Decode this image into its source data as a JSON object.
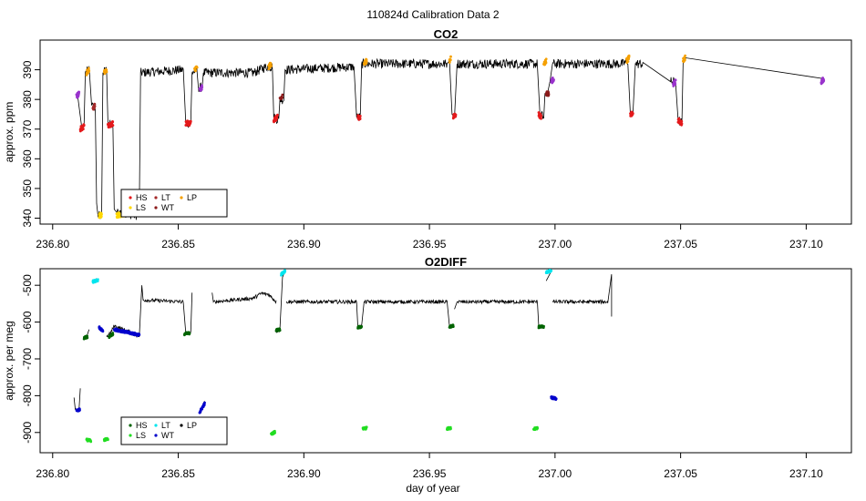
{
  "figure_title": "110824d   Calibration Data 2",
  "colors": {
    "HS": "#e41a1c",
    "LS": "#ffd700",
    "LT": "#a52a2a",
    "WT": "#8b1a1a",
    "LP": "#f5a000",
    "purple": "#9933cc",
    "o2_HS": "#006400",
    "o2_LS": "#22dd22",
    "o2_LT": "#00e5ee",
    "o2_WT": "#0000cc",
    "line": "#000000"
  },
  "chart_data": [
    {
      "type": "line",
      "title": "CO2",
      "xlabel": "",
      "ylabel": "approx. ppm",
      "xlim": [
        236.795,
        237.118
      ],
      "ylim": [
        338,
        400
      ],
      "x_ticks": [
        236.8,
        236.85,
        236.9,
        236.95,
        237.0,
        237.05,
        237.1
      ],
      "x_tick_labels": [
        "236.80",
        "236.85",
        "236.90",
        "236.95",
        "237.00",
        "237.05",
        "237.10"
      ],
      "y_ticks": [
        340,
        350,
        360,
        370,
        380,
        390
      ],
      "y_tick_labels": [
        "340",
        "350",
        "360",
        "370",
        "380",
        "390"
      ],
      "legend": {
        "position": "bottom-left",
        "entries": [
          "HS",
          "LS",
          "LT",
          "WT",
          "LP"
        ]
      },
      "trace": [
        [
          236.81,
          381
        ],
        [
          236.8115,
          371
        ],
        [
          236.8125,
          371
        ],
        [
          236.813,
          389
        ],
        [
          236.8145,
          390
        ],
        [
          236.8155,
          378
        ],
        [
          236.817,
          377
        ],
        [
          236.8175,
          345
        ],
        [
          236.818,
          341
        ],
        [
          236.8195,
          341
        ],
        [
          236.82,
          389
        ],
        [
          236.8215,
          390
        ],
        [
          236.822,
          372
        ],
        [
          236.824,
          371
        ],
        [
          236.8245,
          343
        ],
        [
          236.8255,
          342
        ],
        [
          236.828,
          342
        ],
        [
          236.832,
          341
        ],
        [
          236.8345,
          341
        ],
        [
          236.835,
          389
        ],
        [
          236.852,
          390
        ],
        [
          236.853,
          372
        ],
        [
          236.855,
          372
        ],
        [
          236.8555,
          389
        ],
        [
          236.8575,
          390
        ],
        [
          236.858,
          384
        ],
        [
          236.8595,
          384
        ],
        [
          236.86,
          389
        ],
        [
          236.88,
          389
        ],
        [
          236.885,
          391
        ],
        [
          236.8875,
          391
        ],
        [
          236.888,
          374
        ],
        [
          236.89,
          373
        ],
        [
          236.8905,
          380
        ],
        [
          236.892,
          380
        ],
        [
          236.8925,
          390
        ],
        [
          236.92,
          391
        ],
        [
          236.921,
          374
        ],
        [
          236.9225,
          374
        ],
        [
          236.923,
          392
        ],
        [
          236.957,
          392
        ],
        [
          236.958,
          393
        ],
        [
          236.959,
          375
        ],
        [
          236.96,
          374
        ],
        [
          236.961,
          392
        ],
        [
          236.993,
          392
        ],
        [
          236.994,
          375
        ],
        [
          236.9955,
          374
        ],
        [
          236.996,
          382
        ],
        [
          236.997,
          382
        ],
        [
          236.998,
          386
        ],
        [
          236.999,
          392
        ],
        [
          237.027,
          392
        ],
        [
          237.029,
          393
        ],
        [
          237.03,
          375
        ],
        [
          237.031,
          375
        ],
        [
          237.032,
          392
        ],
        [
          237.035,
          392
        ],
        [
          237.046,
          386
        ],
        [
          237.048,
          386
        ],
        [
          237.049,
          373
        ],
        [
          237.0505,
          372
        ],
        [
          237.051,
          393
        ],
        [
          237.052,
          394
        ],
        [
          237.107,
          387
        ]
      ],
      "points": [
        {
          "label": "purple",
          "x": [
            236.8095,
            236.8105
          ],
          "y": [
            381,
            382
          ]
        },
        {
          "label": "HS",
          "x": [
            236.811,
            236.8125
          ],
          "y": [
            370,
            371
          ]
        },
        {
          "label": "LP",
          "x": [
            236.8135,
            236.8145
          ],
          "y": [
            389,
            390
          ]
        },
        {
          "label": "LT",
          "x": [
            236.816,
            236.8168
          ],
          "y": [
            377,
            378
          ]
        },
        {
          "label": "LS",
          "x": [
            236.8185,
            236.8195
          ],
          "y": [
            341,
            341
          ]
        },
        {
          "label": "LP",
          "x": [
            236.8205,
            236.8215
          ],
          "y": [
            389,
            390
          ]
        },
        {
          "label": "HS",
          "x": [
            236.822,
            236.824
          ],
          "y": [
            371,
            372
          ]
        },
        {
          "label": "LS",
          "x": [
            236.8255,
            236.833
          ],
          "y": [
            341,
            342
          ]
        },
        {
          "label": "HS",
          "x": [
            236.853,
            236.855
          ],
          "y": [
            372,
            372
          ]
        },
        {
          "label": "LP",
          "x": [
            236.8565,
            236.8575
          ],
          "y": [
            390,
            391
          ]
        },
        {
          "label": "purple",
          "x": [
            236.8585,
            236.8595
          ],
          "y": [
            383,
            384
          ]
        },
        {
          "label": "LP",
          "x": [
            236.886,
            236.887
          ],
          "y": [
            391,
            392
          ]
        },
        {
          "label": "HS",
          "x": [
            236.888,
            236.8895
          ],
          "y": [
            373,
            374
          ]
        },
        {
          "label": "WT",
          "x": [
            236.8905,
            236.8915
          ],
          "y": [
            380,
            381
          ]
        },
        {
          "label": "HS",
          "x": [
            236.9215,
            236.9225
          ],
          "y": [
            374,
            374
          ]
        },
        {
          "label": "LP",
          "x": [
            236.924,
            236.925
          ],
          "y": [
            392,
            393
          ]
        },
        {
          "label": "LP",
          "x": [
            236.958,
            236.9585
          ],
          "y": [
            393,
            394
          ]
        },
        {
          "label": "HS",
          "x": [
            236.9595,
            236.9605
          ],
          "y": [
            374,
            375
          ]
        },
        {
          "label": "HS",
          "x": [
            236.9935,
            236.9945
          ],
          "y": [
            375,
            374
          ]
        },
        {
          "label": "LP",
          "x": [
            236.9955,
            236.9965
          ],
          "y": [
            392,
            393
          ]
        },
        {
          "label": "WT",
          "x": [
            236.9965,
            236.9975
          ],
          "y": [
            382,
            382
          ]
        },
        {
          "label": "purple",
          "x": [
            236.9985,
            236.9995
          ],
          "y": [
            386,
            387
          ]
        },
        {
          "label": "LP",
          "x": [
            237.0285,
            237.0295
          ],
          "y": [
            393,
            394
          ]
        },
        {
          "label": "HS",
          "x": [
            237.03,
            237.031
          ],
          "y": [
            375,
            375
          ]
        },
        {
          "label": "purple",
          "x": [
            237.047,
            237.048
          ],
          "y": [
            385,
            386
          ]
        },
        {
          "label": "HS",
          "x": [
            237.049,
            237.0505
          ],
          "y": [
            373,
            372
          ]
        },
        {
          "label": "LP",
          "x": [
            237.051,
            237.0518
          ],
          "y": [
            393,
            394
          ]
        },
        {
          "label": "purple",
          "x": [
            237.106,
            237.107
          ],
          "y": [
            386,
            387
          ]
        }
      ]
    },
    {
      "type": "line",
      "title": "O2DIFF",
      "xlabel": "day of year",
      "ylabel": "approx. per meg",
      "xlim": [
        236.795,
        237.118
      ],
      "ylim": [
        -955,
        -455
      ],
      "x_ticks": [
        236.8,
        236.85,
        236.9,
        236.95,
        237.0,
        237.05,
        237.1
      ],
      "x_tick_labels": [
        "236.80",
        "236.85",
        "236.90",
        "236.95",
        "237.00",
        "237.05",
        "237.10"
      ],
      "y_ticks": [
        -500,
        -600,
        -700,
        -800,
        -900
      ],
      "y_tick_labels": [
        "-500",
        "-600",
        "-700",
        "-800",
        "-900"
      ],
      "legend": {
        "position": "bottom-left",
        "entries": [
          "HS",
          "LS",
          "LT",
          "WT",
          "LP"
        ]
      },
      "segments": [
        [
          [
            236.8085,
            -805
          ],
          [
            236.809,
            -838
          ],
          [
            236.8105,
            -840
          ],
          [
            236.811,
            -780
          ]
        ],
        [
          [
            236.8125,
            -645
          ],
          [
            236.8135,
            -640
          ],
          [
            236.8145,
            -620
          ]
        ],
        [
          [
            236.816,
            -490
          ],
          [
            236.818,
            -487
          ]
        ],
        [
          [
            236.8185,
            -612
          ],
          [
            236.82,
            -625
          ]
        ],
        [
          [
            236.8215,
            -640
          ],
          [
            236.823,
            -630
          ],
          [
            236.8245,
            -610
          ],
          [
            236.83,
            -625
          ],
          [
            236.8345,
            -640
          ],
          [
            236.8355,
            -500
          ],
          [
            236.836,
            -540
          ],
          [
            236.852,
            -545
          ],
          [
            236.853,
            -630
          ],
          [
            236.855,
            -630
          ],
          [
            236.8555,
            -520
          ]
        ],
        [
          [
            236.859,
            -848
          ],
          [
            236.86,
            -820
          ],
          [
            236.8605,
            -815
          ]
        ],
        [
          [
            236.8635,
            -520
          ],
          [
            236.864,
            -545
          ],
          [
            236.88,
            -535
          ],
          [
            236.883,
            -522
          ],
          [
            236.886,
            -525
          ],
          [
            236.889,
            -545
          ]
        ],
        [
          [
            236.889,
            -625
          ],
          [
            236.8905,
            -620
          ],
          [
            236.8915,
            -478
          ],
          [
            236.8925,
            -462
          ]
        ],
        [
          [
            236.893,
            -545
          ],
          [
            236.921,
            -545
          ],
          [
            236.9215,
            -615
          ],
          [
            236.923,
            -612
          ],
          [
            236.924,
            -545
          ],
          [
            236.957,
            -545
          ],
          [
            236.958,
            -612
          ],
          [
            236.9595,
            -610
          ]
        ],
        [
          [
            236.96,
            -565
          ],
          [
            236.961,
            -545
          ],
          [
            236.993,
            -545
          ],
          [
            236.9935,
            -612
          ],
          [
            236.995,
            -612
          ],
          [
            236.9955,
            -612
          ]
        ],
        [
          [
            236.9965,
            -488
          ],
          [
            236.9985,
            -462
          ]
        ],
        [
          [
            236.999,
            -545
          ],
          [
            237.021,
            -545
          ],
          [
            237.0225,
            -470
          ],
          [
            237.0225,
            -585
          ]
        ]
      ],
      "points": [
        {
          "label": "o2_WT",
          "x": [
            236.8095,
            236.8108
          ],
          "y": [
            -840,
            -838
          ]
        },
        {
          "label": "o2_HS",
          "x": [
            236.8125,
            236.8138
          ],
          "y": [
            -643,
            -640
          ]
        },
        {
          "label": "o2_LS",
          "x": [
            236.8135,
            236.8152
          ],
          "y": [
            -920,
            -922
          ]
        },
        {
          "label": "o2_LT",
          "x": [
            236.816,
            236.818
          ],
          "y": [
            -490,
            -487
          ]
        },
        {
          "label": "o2_WT",
          "x": [
            236.8185,
            236.82
          ],
          "y": [
            -615,
            -625
          ]
        },
        {
          "label": "o2_LS",
          "x": [
            236.8205,
            236.822
          ],
          "y": [
            -920,
            -918
          ]
        },
        {
          "label": "o2_HS",
          "x": [
            236.8225,
            236.824
          ],
          "y": [
            -640,
            -632
          ]
        },
        {
          "label": "o2_WT",
          "x": [
            236.8245,
            236.8345
          ],
          "y": [
            -620,
            -635
          ]
        },
        {
          "label": "o2_HS",
          "x": [
            236.8525,
            236.8545
          ],
          "y": [
            -632,
            -630
          ]
        },
        {
          "label": "o2_WT",
          "x": [
            236.8585,
            236.8605
          ],
          "y": [
            -845,
            -822
          ]
        },
        {
          "label": "o2_LS",
          "x": [
            236.887,
            236.8885
          ],
          "y": [
            -905,
            -898
          ]
        },
        {
          "label": "o2_HS",
          "x": [
            236.889,
            236.8905
          ],
          "y": [
            -622,
            -620
          ]
        },
        {
          "label": "o2_LT",
          "x": [
            236.891,
            236.8925
          ],
          "y": [
            -470,
            -462
          ]
        },
        {
          "label": "o2_HS",
          "x": [
            236.9215,
            236.923
          ],
          "y": [
            -615,
            -612
          ]
        },
        {
          "label": "o2_LS",
          "x": [
            236.9235,
            236.925
          ],
          "y": [
            -890,
            -888
          ]
        },
        {
          "label": "o2_LS",
          "x": [
            236.957,
            236.9585
          ],
          "y": [
            -890,
            -888
          ]
        },
        {
          "label": "o2_HS",
          "x": [
            236.958,
            236.9595
          ],
          "y": [
            -613,
            -610
          ]
        },
        {
          "label": "o2_LS",
          "x": [
            236.9915,
            236.993
          ],
          "y": [
            -890,
            -888
          ]
        },
        {
          "label": "o2_HS",
          "x": [
            236.9935,
            236.9955
          ],
          "y": [
            -613,
            -612
          ]
        },
        {
          "label": "o2_LT",
          "x": [
            236.9965,
            236.9985
          ],
          "y": [
            -465,
            -460
          ]
        },
        {
          "label": "o2_WT",
          "x": [
            236.9985,
            237.0005
          ],
          "y": [
            -805,
            -808
          ]
        }
      ]
    }
  ]
}
